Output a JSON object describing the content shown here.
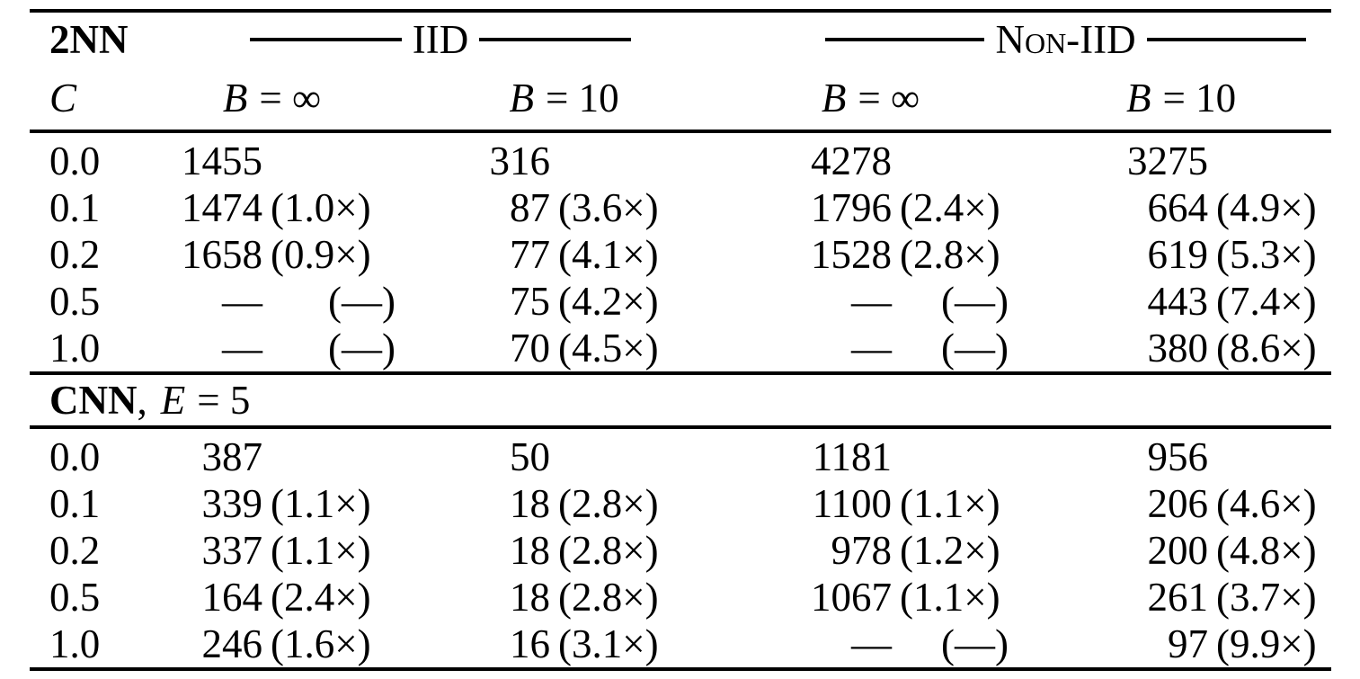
{
  "table": {
    "section1": {
      "model": "2NN",
      "iid_label": "IID",
      "noniid_label": "Non-IID"
    },
    "columns": {
      "c_label": "C",
      "sub": [
        {
          "var": "B",
          "rest": "= ∞"
        },
        {
          "var": "B",
          "rest": "= 10"
        },
        {
          "var": "B",
          "rest": "= ∞"
        },
        {
          "var": "B",
          "rest": "= 10"
        }
      ]
    },
    "section1_rows": [
      {
        "c": "0.0",
        "cells": [
          {
            "num": "1455",
            "paren": ""
          },
          {
            "num": "316",
            "paren": ""
          },
          {
            "num": "4278",
            "paren": ""
          },
          {
            "num": "3275",
            "paren": ""
          }
        ]
      },
      {
        "c": "0.1",
        "cells": [
          {
            "num": "1474",
            "paren": "(1.0×)"
          },
          {
            "num": "87",
            "paren": "(3.6×)"
          },
          {
            "num": "1796",
            "paren": "(2.4×)"
          },
          {
            "num": "664",
            "paren": "(4.9×)"
          }
        ]
      },
      {
        "c": "0.2",
        "cells": [
          {
            "num": "1658",
            "paren": "(0.9×)"
          },
          {
            "num": "77",
            "paren": "(4.1×)"
          },
          {
            "num": "1528",
            "paren": "(2.8×)"
          },
          {
            "num": "619",
            "paren": "(5.3×)"
          }
        ]
      },
      {
        "c": "0.5",
        "cells": [
          {
            "num": "—",
            "paren": "(—)"
          },
          {
            "num": "75",
            "paren": "(4.2×)"
          },
          {
            "num": "—",
            "paren": "(—)"
          },
          {
            "num": "443",
            "paren": "(7.4×)"
          }
        ]
      },
      {
        "c": "1.0",
        "cells": [
          {
            "num": "—",
            "paren": "(—)"
          },
          {
            "num": "70",
            "paren": "(4.5×)"
          },
          {
            "num": "—",
            "paren": "(—)"
          },
          {
            "num": "380",
            "paren": "(8.6×)"
          }
        ]
      }
    ],
    "section2": {
      "model": "CNN",
      "comma": ",",
      "var": "E",
      "rest": "= 5"
    },
    "section2_rows": [
      {
        "c": "0.0",
        "cells": [
          {
            "num": "387",
            "paren": ""
          },
          {
            "num": "50",
            "paren": ""
          },
          {
            "num": "1181",
            "paren": ""
          },
          {
            "num": "956",
            "paren": ""
          }
        ]
      },
      {
        "c": "0.1",
        "cells": [
          {
            "num": "339",
            "paren": "(1.1×)"
          },
          {
            "num": "18",
            "paren": "(2.8×)"
          },
          {
            "num": "1100",
            "paren": "(1.1×)"
          },
          {
            "num": "206",
            "paren": "(4.6×)"
          }
        ]
      },
      {
        "c": "0.2",
        "cells": [
          {
            "num": "337",
            "paren": "(1.1×)"
          },
          {
            "num": "18",
            "paren": "(2.8×)"
          },
          {
            "num": "978",
            "paren": "(1.2×)"
          },
          {
            "num": "200",
            "paren": "(4.8×)"
          }
        ]
      },
      {
        "c": "0.5",
        "cells": [
          {
            "num": "164",
            "paren": "(2.4×)"
          },
          {
            "num": "18",
            "paren": "(2.8×)"
          },
          {
            "num": "1067",
            "paren": "(1.1×)"
          },
          {
            "num": "261",
            "paren": "(3.7×)"
          }
        ]
      },
      {
        "c": "1.0",
        "cells": [
          {
            "num": "246",
            "paren": "(1.6×)"
          },
          {
            "num": "16",
            "paren": "(3.1×)"
          },
          {
            "num": "—",
            "paren": "(—)"
          },
          {
            "num": "97",
            "paren": "(9.9×)"
          }
        ]
      }
    ]
  }
}
